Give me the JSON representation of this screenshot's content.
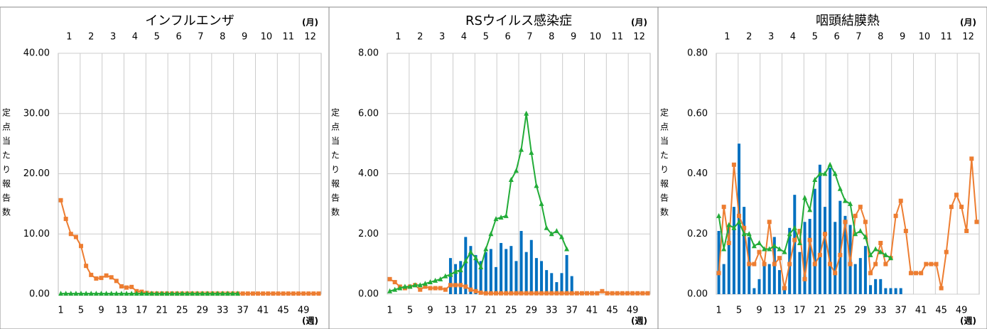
{
  "chart_data": [
    {
      "type": "combo",
      "title": "インフルエンザ",
      "y_label": "定点当たり報告数",
      "month_unit": "(月)",
      "week_unit": "(週)",
      "months": [
        1,
        2,
        3,
        4,
        5,
        6,
        7,
        8,
        9,
        10,
        11,
        12
      ],
      "x": [
        1,
        2,
        3,
        4,
        5,
        6,
        7,
        8,
        9,
        10,
        11,
        12,
        13,
        14,
        15,
        16,
        17,
        18,
        19,
        20,
        21,
        22,
        23,
        24,
        25,
        26,
        27,
        28,
        29,
        30,
        31,
        32,
        33,
        34,
        35,
        36,
        37,
        38,
        39,
        40,
        41,
        42,
        43,
        44,
        45,
        46,
        47,
        48,
        49,
        50,
        51,
        52
      ],
      "xlim": [
        1,
        52
      ],
      "xticks": [
        1,
        5,
        9,
        13,
        17,
        21,
        25,
        29,
        33,
        37,
        41,
        45,
        49
      ],
      "ylim": [
        0,
        40
      ],
      "yticks": [
        {
          "value": 0,
          "label": "0.00"
        },
        {
          "value": 10,
          "label": "10.00"
        },
        {
          "value": 20,
          "label": "20.00"
        },
        {
          "value": 30,
          "label": "30.00"
        },
        {
          "value": 40,
          "label": "40.00"
        }
      ],
      "grid": true,
      "series": [
        {
          "kind": "line",
          "marker": "square",
          "color": "#ed7d31",
          "values": [
            15.6,
            12.5,
            10.0,
            9.5,
            8.0,
            4.7,
            3.2,
            2.6,
            2.7,
            3.1,
            2.8,
            2.2,
            1.3,
            1.1,
            1.2,
            0.5,
            0.4,
            0.2,
            0.1,
            0.1,
            0.1,
            0.1,
            0.1,
            0.1,
            0.1,
            0.1,
            0.1,
            0.1,
            0.1,
            0.1,
            0.1,
            0.1,
            0.1,
            0.1,
            0.1,
            0.1,
            0.1,
            0.1,
            0.1,
            0.1,
            0.1,
            0.1,
            0.1,
            0.1,
            0.1,
            0.1,
            0.1,
            0.1,
            0.1,
            0.1,
            0.1,
            0.1
          ]
        },
        {
          "kind": "line",
          "marker": "triangle",
          "color": "#22ac38",
          "values": [
            0.1,
            0.1,
            0.1,
            0.1,
            0.1,
            0.1,
            0.1,
            0.1,
            0.1,
            0.1,
            0.1,
            0.1,
            0.1,
            0.1,
            0.1,
            0.1,
            0.1,
            0.1,
            0.1,
            0.1,
            0.1,
            0.1,
            0.1,
            0.1,
            0.1,
            0.1,
            0.1,
            0.1,
            0.1,
            0.1,
            0.1,
            0.1,
            0.1,
            0.1,
            0.1,
            0.1,
            null,
            null,
            null,
            null,
            null,
            null,
            null,
            null,
            null,
            null,
            null,
            null,
            null,
            null,
            null,
            null
          ]
        }
      ]
    },
    {
      "type": "combo",
      "title": "RSウイルス感染症",
      "y_label": "定点当たり報告数",
      "month_unit": "(月)",
      "week_unit": "(週)",
      "months": [
        1,
        2,
        3,
        4,
        5,
        6,
        7,
        8,
        9,
        10,
        11,
        12
      ],
      "x": [
        1,
        2,
        3,
        4,
        5,
        6,
        7,
        8,
        9,
        10,
        11,
        12,
        13,
        14,
        15,
        16,
        17,
        18,
        19,
        20,
        21,
        22,
        23,
        24,
        25,
        26,
        27,
        28,
        29,
        30,
        31,
        32,
        33,
        34,
        35,
        36,
        37,
        38,
        39,
        40,
        41,
        42,
        43,
        44,
        45,
        46,
        47,
        48,
        49,
        50,
        51,
        52
      ],
      "xlim": [
        1,
        52
      ],
      "xticks": [
        1,
        5,
        9,
        13,
        17,
        21,
        25,
        29,
        33,
        37,
        41,
        45,
        49
      ],
      "ylim": [
        0,
        8
      ],
      "yticks": [
        {
          "value": 0,
          "label": "0.00"
        },
        {
          "value": 2,
          "label": "2.00"
        },
        {
          "value": 4,
          "label": "4.00"
        },
        {
          "value": 6,
          "label": "6.00"
        },
        {
          "value": 8,
          "label": "8.00"
        }
      ],
      "grid": true,
      "series": [
        {
          "kind": "bar",
          "color": "#0070c0",
          "values": [
            null,
            null,
            null,
            null,
            null,
            null,
            null,
            null,
            null,
            null,
            null,
            null,
            1.2,
            1.0,
            1.1,
            1.9,
            1.6,
            1.3,
            1.1,
            1.4,
            1.5,
            0.9,
            1.7,
            1.5,
            1.6,
            1.1,
            2.1,
            1.4,
            1.8,
            1.2,
            1.1,
            0.8,
            0.7,
            0.4,
            0.7,
            1.3,
            0.6,
            null,
            null,
            null,
            null,
            null,
            null,
            null,
            null,
            null,
            null,
            null,
            null,
            null,
            null,
            null
          ]
        },
        {
          "kind": "line",
          "marker": "square",
          "color": "#ed7d31",
          "values": [
            0.5,
            0.4,
            0.25,
            0.2,
            0.25,
            0.3,
            0.15,
            0.25,
            0.2,
            0.2,
            0.2,
            0.15,
            0.3,
            0.3,
            0.3,
            0.25,
            0.15,
            0.1,
            0.05,
            0.03,
            0.03,
            0.03,
            0.03,
            0.03,
            0.03,
            0.03,
            0.03,
            0.03,
            0.03,
            0.03,
            0.03,
            0.03,
            0.03,
            0.03,
            0.03,
            0.03,
            0.03,
            0.03,
            0.03,
            0.03,
            0.03,
            0.03,
            0.1,
            0.03,
            0.03,
            0.03,
            0.03,
            0.03,
            0.03,
            0.03,
            0.03,
            0.03
          ]
        },
        {
          "kind": "line",
          "marker": "triangle",
          "color": "#22ac38",
          "values": [
            0.1,
            0.15,
            0.2,
            0.25,
            0.25,
            0.3,
            0.3,
            0.35,
            0.4,
            0.45,
            0.5,
            0.6,
            0.65,
            0.75,
            0.8,
            1.1,
            1.4,
            1.2,
            0.9,
            1.5,
            2.0,
            2.5,
            2.55,
            2.6,
            3.8,
            4.1,
            4.8,
            6.0,
            4.7,
            3.6,
            3.0,
            2.2,
            2.0,
            2.1,
            1.9,
            1.5,
            null,
            null,
            null,
            null,
            null,
            null,
            null,
            null,
            null,
            null,
            null,
            null,
            null,
            null,
            null,
            null
          ]
        }
      ]
    },
    {
      "type": "combo",
      "title": "咽頭結膜熱",
      "y_label": "定点当たり報告数",
      "month_unit": "(月)",
      "week_unit": "(週)",
      "months": [
        1,
        2,
        3,
        4,
        5,
        6,
        7,
        8,
        9,
        10,
        11,
        12
      ],
      "x": [
        1,
        2,
        3,
        4,
        5,
        6,
        7,
        8,
        9,
        10,
        11,
        12,
        13,
        14,
        15,
        16,
        17,
        18,
        19,
        20,
        21,
        22,
        23,
        24,
        25,
        26,
        27,
        28,
        29,
        30,
        31,
        32,
        33,
        34,
        35,
        36,
        37,
        38,
        39,
        40,
        41,
        42,
        43,
        44,
        45,
        46,
        47,
        48,
        49,
        50,
        51,
        52
      ],
      "xlim": [
        1,
        52
      ],
      "xticks": [
        1,
        5,
        9,
        13,
        17,
        21,
        25,
        29,
        33,
        37,
        41,
        45,
        49
      ],
      "ylim": [
        0,
        0.8
      ],
      "yticks": [
        {
          "value": 0,
          "label": "0.00"
        },
        {
          "value": 0.2,
          "label": "0.20"
        },
        {
          "value": 0.4,
          "label": "0.40"
        },
        {
          "value": 0.6,
          "label": "0.60"
        },
        {
          "value": 0.8,
          "label": "0.80"
        }
      ],
      "grid": true,
      "series": [
        {
          "kind": "bar",
          "color": "#0070c0",
          "values": [
            0.21,
            0.1,
            0.23,
            0.29,
            0.5,
            0.29,
            0.19,
            0.02,
            0.05,
            0.1,
            0.1,
            0.19,
            0.08,
            0.02,
            0.22,
            0.33,
            0.14,
            0.24,
            0.25,
            0.35,
            0.43,
            0.29,
            0.42,
            0.24,
            0.31,
            0.26,
            0.23,
            0.1,
            0.12,
            0.16,
            0.03,
            0.05,
            0.05,
            0.02,
            0.02,
            0.02,
            0.02,
            null,
            null,
            null,
            null,
            null,
            null,
            null,
            null,
            null,
            null,
            null,
            null,
            null,
            null,
            null
          ]
        },
        {
          "kind": "line",
          "marker": "square",
          "color": "#ed7d31",
          "values": [
            0.07,
            0.29,
            0.17,
            0.43,
            0.26,
            0.22,
            0.1,
            0.1,
            0.14,
            0.1,
            0.24,
            0.1,
            0.12,
            0.02,
            0.1,
            0.18,
            0.21,
            0.05,
            0.18,
            0.1,
            0.13,
            0.2,
            0.1,
            0.07,
            0.13,
            0.24,
            0.1,
            0.26,
            0.29,
            0.24,
            0.07,
            0.1,
            0.17,
            0.1,
            0.12,
            0.26,
            0.31,
            0.21,
            0.07,
            0.07,
            0.07,
            0.1,
            0.1,
            0.1,
            0.02,
            0.14,
            0.29,
            0.33,
            0.29,
            0.21,
            0.45,
            0.24
          ]
        },
        {
          "kind": "line",
          "marker": "triangle",
          "color": "#22ac38",
          "values": [
            0.26,
            0.15,
            0.23,
            0.22,
            0.24,
            0.2,
            0.2,
            0.16,
            0.17,
            0.15,
            0.15,
            0.16,
            0.15,
            0.14,
            0.2,
            0.22,
            0.17,
            0.32,
            0.28,
            0.38,
            0.4,
            0.4,
            0.43,
            0.4,
            0.35,
            0.31,
            0.3,
            0.2,
            0.21,
            0.19,
            0.13,
            0.15,
            0.14,
            0.13,
            0.12,
            null,
            null,
            null,
            null,
            null,
            null,
            null,
            null,
            null,
            null,
            null,
            null,
            null,
            null,
            null,
            null,
            null
          ]
        }
      ]
    }
  ]
}
